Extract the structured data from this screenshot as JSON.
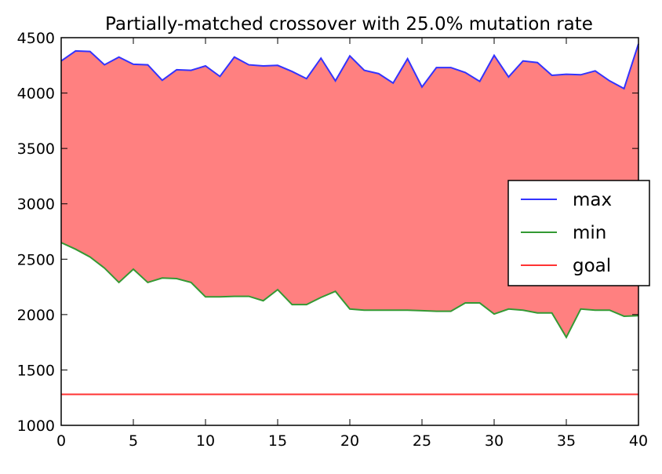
{
  "chart_data": {
    "type": "line",
    "title": "Partially-matched crossover with 25.0% mutation rate",
    "xlabel": "",
    "ylabel": "",
    "xlim": [
      0,
      40
    ],
    "ylim": [
      1000,
      4500
    ],
    "xticks": [
      0,
      5,
      10,
      15,
      20,
      25,
      30,
      35,
      40
    ],
    "yticks": [
      1000,
      1500,
      2000,
      2500,
      3000,
      3500,
      4000,
      4500
    ],
    "grid": false,
    "legend_position": "center-right",
    "fill_between": {
      "upper": "max",
      "lower": "min",
      "color": "#ff8080"
    },
    "x": [
      0,
      1,
      2,
      3,
      4,
      5,
      6,
      7,
      8,
      9,
      10,
      11,
      12,
      13,
      14,
      15,
      16,
      17,
      18,
      19,
      20,
      21,
      22,
      23,
      24,
      25,
      26,
      27,
      28,
      29,
      30,
      31,
      32,
      33,
      34,
      35,
      36,
      37,
      38,
      39,
      40
    ],
    "series": [
      {
        "name": "max",
        "color": "#3333ff",
        "values": [
          4290,
          4380,
          4375,
          4255,
          4325,
          4260,
          4255,
          4115,
          4210,
          4205,
          4245,
          4150,
          4325,
          4255,
          4245,
          4250,
          4195,
          4130,
          4315,
          4110,
          4335,
          4205,
          4175,
          4090,
          4310,
          4055,
          4230,
          4230,
          4185,
          4105,
          4340,
          4145,
          4290,
          4275,
          4160,
          4170,
          4165,
          4200,
          4110,
          4040,
          4445
        ]
      },
      {
        "name": "min",
        "color": "#339933",
        "values": [
          2650,
          2590,
          2520,
          2420,
          2290,
          2410,
          2290,
          2330,
          2325,
          2290,
          2160,
          2160,
          2165,
          2165,
          2125,
          2225,
          2090,
          2090,
          2155,
          2210,
          2050,
          2040,
          2040,
          2040,
          2040,
          2035,
          2030,
          2030,
          2105,
          2105,
          2005,
          2050,
          2040,
          2015,
          2015,
          1795,
          2050,
          2040,
          2040,
          1985,
          1990
        ]
      },
      {
        "name": "goal",
        "color": "#ff3333",
        "values": [
          1280,
          1280,
          1280,
          1280,
          1280,
          1280,
          1280,
          1280,
          1280,
          1280,
          1280,
          1280,
          1280,
          1280,
          1280,
          1280,
          1280,
          1280,
          1280,
          1280,
          1280,
          1280,
          1280,
          1280,
          1280,
          1280,
          1280,
          1280,
          1280,
          1280,
          1280,
          1280,
          1280,
          1280,
          1280,
          1280,
          1280,
          1280,
          1280,
          1280,
          1280
        ]
      }
    ]
  }
}
